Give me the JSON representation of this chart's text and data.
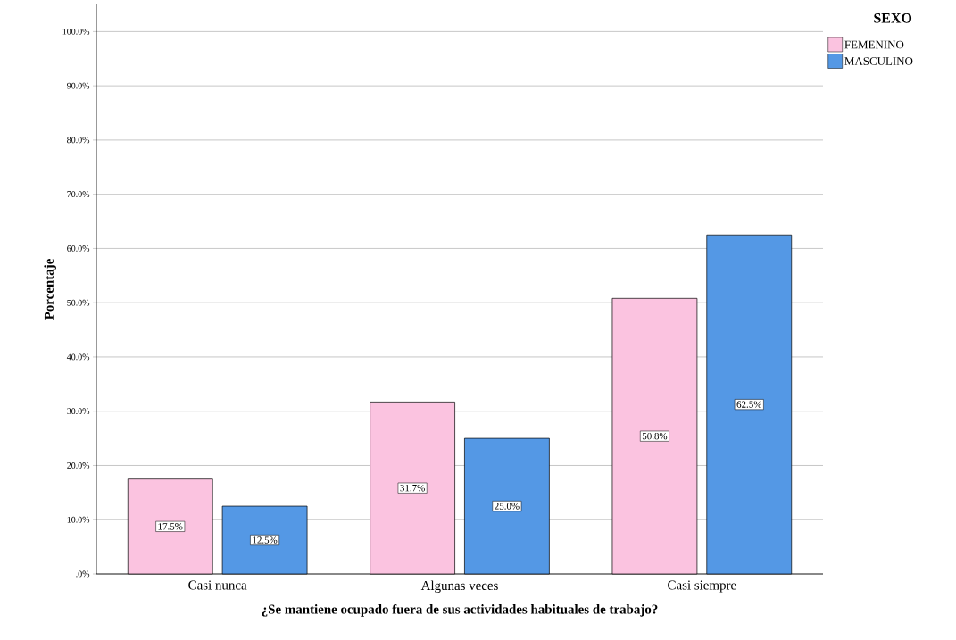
{
  "chart_data": {
    "type": "bar",
    "xlabel": "¿Se mantiene ocupado fuera de sus actividades habituales de trabajo?",
    "ylabel": "Porcentaje",
    "legend_title": "SEXO",
    "categories": [
      "Casi nunca",
      "Algunas veces",
      "Casi siempre"
    ],
    "series": [
      {
        "name": "FEMENINO",
        "color": "#fbc3e0",
        "values": [
          17.5,
          31.7,
          50.8
        ],
        "value_labels": [
          "17.5%",
          "31.7%",
          "50.8%"
        ]
      },
      {
        "name": "MASCULINO",
        "color": "#5498e5",
        "values": [
          12.5,
          25.0,
          62.5
        ],
        "value_labels": [
          "12.5%",
          "25.0%",
          "62.5%"
        ]
      }
    ],
    "ylim": [
      0,
      105
    ],
    "yticks": [
      {
        "value": 0,
        "label": ".0%"
      },
      {
        "value": 10,
        "label": "10.0%"
      },
      {
        "value": 20,
        "label": "20.0%"
      },
      {
        "value": 30,
        "label": "30.0%"
      },
      {
        "value": 40,
        "label": "40.0%"
      },
      {
        "value": 50,
        "label": "50.0%"
      },
      {
        "value": 60,
        "label": "60.0%"
      },
      {
        "value": 70,
        "label": "70.0%"
      },
      {
        "value": 80,
        "label": "80.0%"
      },
      {
        "value": 90,
        "label": "90.0%"
      },
      {
        "value": 100,
        "label": "100.0%"
      }
    ],
    "grid": "y",
    "legend": "top right"
  }
}
